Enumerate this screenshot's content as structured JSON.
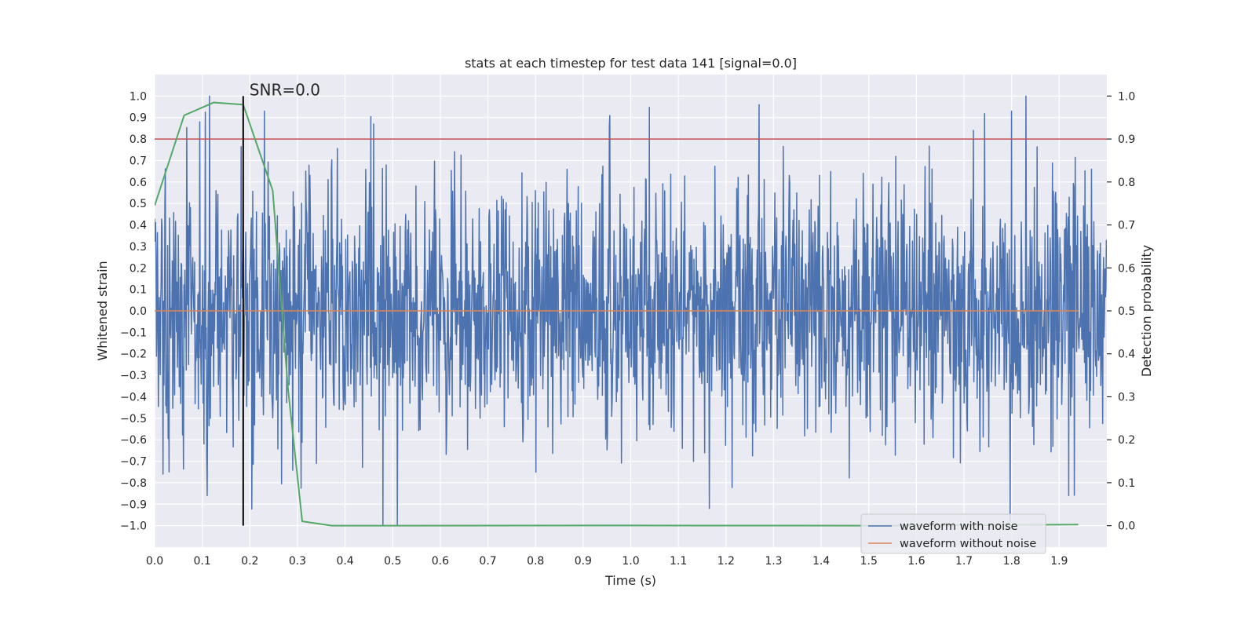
{
  "chart_data": {
    "type": "line",
    "title": "stats at each timestep for test data 141 [signal=0.0]",
    "xlabel": "Time (s)",
    "ylabel": "Whitened strain",
    "y2label": "Detection probability",
    "xlim": [
      0.0,
      2.0
    ],
    "ylim": [
      -1.1,
      1.1
    ],
    "y2lim": [
      -0.05,
      1.05
    ],
    "xticks": [
      0.0,
      0.1,
      0.2,
      0.3,
      0.4,
      0.5,
      0.6,
      0.7,
      0.8,
      0.9,
      1.0,
      1.1,
      1.2,
      1.3,
      1.4,
      1.5,
      1.6,
      1.7,
      1.8,
      1.9
    ],
    "xtick_labels": [
      "0.0",
      "0.1",
      "0.2",
      "0.3",
      "0.4",
      "0.5",
      "0.6",
      "0.7",
      "0.8",
      "0.9",
      "1.0",
      "1.1",
      "1.2",
      "1.3",
      "1.4",
      "1.5",
      "1.6",
      "1.7",
      "1.8",
      "1.9"
    ],
    "yticks": [
      1.0,
      0.9,
      0.8,
      0.7,
      0.6,
      0.5,
      0.4,
      0.3,
      0.2,
      0.1,
      0.0,
      -0.1,
      -0.2,
      -0.3,
      -0.4,
      -0.5,
      -0.6,
      -0.7,
      -0.8,
      -0.9,
      -1.0
    ],
    "ytick_labels": [
      "1.0",
      "0.9",
      "0.8",
      "0.7",
      "0.6",
      "0.5",
      "0.4",
      "0.3",
      "0.2",
      "0.1",
      "0.0",
      "−0.1",
      "−0.2",
      "−0.3",
      "−0.4",
      "−0.5",
      "−0.6",
      "−0.7",
      "−0.8",
      "−0.9",
      "−1.0"
    ],
    "y2ticks": [
      1.0,
      0.9,
      0.8,
      0.7,
      0.6,
      0.5,
      0.4,
      0.3,
      0.2,
      0.1,
      0.0
    ],
    "y2tick_labels": [
      "1.0",
      "0.9",
      "0.8",
      "0.7",
      "0.6",
      "0.5",
      "0.4",
      "0.3",
      "0.2",
      "0.1",
      "0.0"
    ],
    "annotation": {
      "text": "SNR=0.0",
      "x": 0.186
    },
    "marker_line": {
      "x": 0.186,
      "y_from": -1.0,
      "y_to": 1.0,
      "color": "#000000"
    },
    "threshold_line": {
      "y2": 0.9,
      "color": "#c44e52"
    },
    "noise_series": {
      "name": "waveform with noise",
      "color": "#4c72b0",
      "x_start": 0.0,
      "x_end": 2.0,
      "n_points": 2048,
      "amplitude_sd": 0.3,
      "clip": [
        -1.0,
        1.0
      ],
      "seed": 141,
      "peaks": [
        {
          "x": 0.115,
          "y": 1.0
        },
        {
          "x": 0.095,
          "y": 0.88
        },
        {
          "x": 0.23,
          "y": 0.93
        },
        {
          "x": 0.46,
          "y": 0.87
        },
        {
          "x": 0.955,
          "y": 0.86
        },
        {
          "x": 1.27,
          "y": 0.96
        },
        {
          "x": 1.8,
          "y": 0.93
        },
        {
          "x": 1.72,
          "y": 0.84
        },
        {
          "x": 0.51,
          "y": -1.0
        },
        {
          "x": 0.11,
          "y": -0.86
        },
        {
          "x": 1.165,
          "y": -0.92
        },
        {
          "x": 1.92,
          "y": -0.86
        },
        {
          "x": 0.018,
          "y": -0.76
        },
        {
          "x": 0.03,
          "y": -0.75
        }
      ]
    },
    "clean_series": {
      "name": "waveform without noise",
      "color": "#dd8452",
      "x": [
        0.0,
        1.94
      ],
      "y": [
        0.0,
        0.0
      ]
    },
    "probability_series": {
      "name": "detection probability",
      "color": "#55a868",
      "x": [
        0.0,
        0.062,
        0.124,
        0.186,
        0.248,
        0.28,
        0.31,
        0.372,
        0.5,
        1.0,
        1.5,
        1.94
      ],
      "y2": [
        0.745,
        0.955,
        0.985,
        0.98,
        0.78,
        0.32,
        0.01,
        0.0,
        0.0,
        0.0005,
        0.0,
        0.0025
      ]
    },
    "legend": {
      "position": "lower-right",
      "entries": [
        {
          "label": "waveform with noise",
          "color": "#4c72b0"
        },
        {
          "label": "waveform without noise",
          "color": "#dd8452"
        }
      ]
    },
    "grid": true,
    "background": "#eaeaf2"
  }
}
